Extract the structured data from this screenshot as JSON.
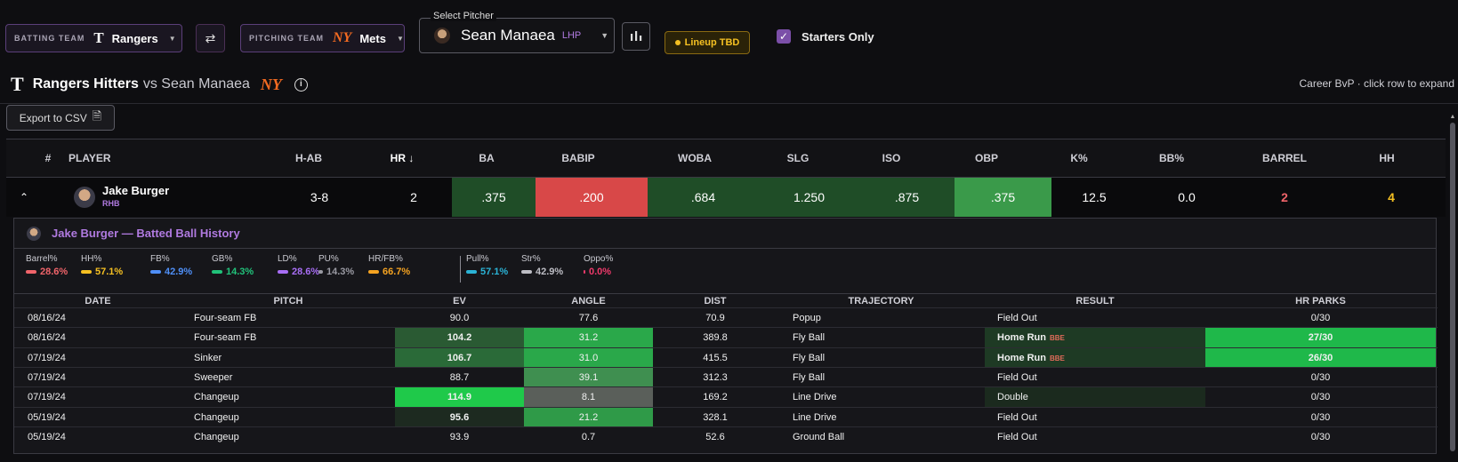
{
  "toolbar": {
    "batting_label": "BATTING TEAM",
    "batting_team": "Rangers",
    "pitching_label": "PITCHING TEAM",
    "pitching_team": "Mets",
    "pitcher_label": "Select Pitcher",
    "pitcher_name": "Sean Manaea",
    "pitcher_hand": "LHP",
    "lineup_badge": "Lineup TBD",
    "starters_label": "Starters Only",
    "starters_checked": true
  },
  "header": {
    "title_bold": "Rangers Hitters",
    "title_rest": "vs Sean Manaea",
    "hint": "Career BvP · click row to expand",
    "export_label": "Export to CSV"
  },
  "columns": [
    "#",
    "PLAYER",
    "H-AB",
    "HR",
    "BA",
    "BABIP",
    "WOBA",
    "SLG",
    "ISO",
    "OBP",
    "K%",
    "BB%",
    "BARREL",
    "HH"
  ],
  "player": {
    "name": "Jake Burger",
    "hand": "RHB",
    "h_ab": "3-8",
    "hr": "2",
    "ba": ".375",
    "babip": ".200",
    "woba": ".684",
    "slg": "1.250",
    "iso": ".875",
    "obp": ".375",
    "k_pct": "12.5",
    "bb_pct": "0.0",
    "barrel": "2",
    "hh": "4"
  },
  "history": {
    "title": "Jake Burger — Batted Ball History",
    "metrics": [
      {
        "label": "Barrel%",
        "value": "28.6%",
        "color": "#f0646a"
      },
      {
        "label": "HH%",
        "value": "57.1%",
        "color": "#f5c022"
      },
      {
        "label": "FB%",
        "value": "42.9%",
        "color": "#4f8ff7"
      },
      {
        "label": "GB%",
        "value": "14.3%",
        "color": "#21c27a"
      },
      {
        "label": "LD%",
        "value": "28.6%",
        "color": "#a86ef5"
      },
      {
        "label": "PU%",
        "value": "14.3%",
        "color": "#9a9aa3"
      },
      {
        "label": "HR/FB%",
        "value": "66.7%",
        "color": "#f5a321"
      },
      {
        "label": "Pull%",
        "value": "57.1%",
        "color": "#2bb3d6"
      },
      {
        "label": "Str%",
        "value": "42.9%",
        "color": "#bdbdc4"
      },
      {
        "label": "Oppo%",
        "value": "0.0%",
        "color": "#f03a6b"
      }
    ],
    "columns": [
      "DATE",
      "PITCH",
      "EV",
      "ANGLE",
      "DIST",
      "TRAJECTORY",
      "RESULT",
      "HR PARKS"
    ],
    "rows": [
      {
        "date": "08/16/24",
        "pitch": "Four-seam FB",
        "ev": "90.0",
        "angle": "77.6",
        "dist": "70.9",
        "traj": "Popup",
        "result": "Field Out",
        "bbe": "",
        "parks": "0/30"
      },
      {
        "date": "08/16/24",
        "pitch": "Four-seam FB",
        "ev": "104.2",
        "angle": "31.2",
        "dist": "389.8",
        "traj": "Fly Ball",
        "result": "Home Run",
        "bbe": "BBE",
        "parks": "27/30"
      },
      {
        "date": "07/19/24",
        "pitch": "Sinker",
        "ev": "106.7",
        "angle": "31.0",
        "dist": "415.5",
        "traj": "Fly Ball",
        "result": "Home Run",
        "bbe": "BBE",
        "parks": "26/30"
      },
      {
        "date": "07/19/24",
        "pitch": "Sweeper",
        "ev": "88.7",
        "angle": "39.1",
        "dist": "312.3",
        "traj": "Fly Ball",
        "result": "Field Out",
        "bbe": "",
        "parks": "0/30"
      },
      {
        "date": "07/19/24",
        "pitch": "Changeup",
        "ev": "114.9",
        "angle": "8.1",
        "dist": "169.2",
        "traj": "Line Drive",
        "result": "Double",
        "bbe": "",
        "parks": "0/30"
      },
      {
        "date": "05/19/24",
        "pitch": "Changeup",
        "ev": "95.6",
        "angle": "21.2",
        "dist": "328.1",
        "traj": "Line Drive",
        "result": "Field Out",
        "bbe": "",
        "parks": "0/30"
      },
      {
        "date": "05/19/24",
        "pitch": "Changeup",
        "ev": "93.9",
        "angle": "0.7",
        "dist": "52.6",
        "traj": "Ground Ball",
        "result": "Field Out",
        "bbe": "",
        "parks": "0/30"
      }
    ]
  }
}
